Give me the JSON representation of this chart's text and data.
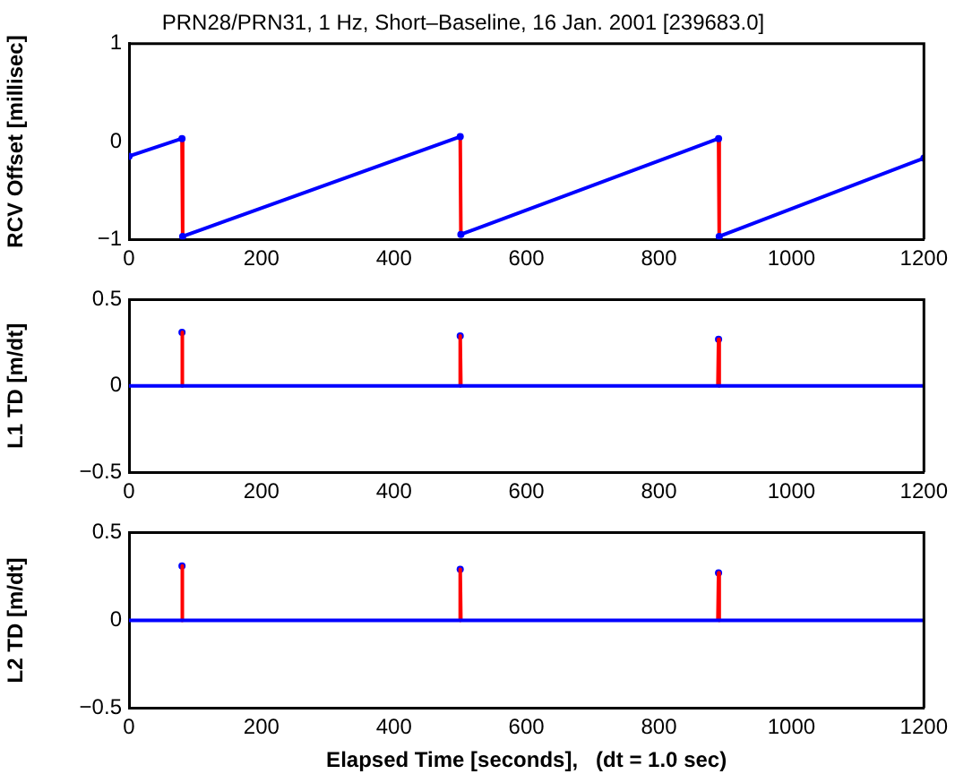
{
  "chart_data": [
    {
      "type": "line",
      "title": "PRN28/PRN31, 1 Hz, Short–Baseline, 16 Jan. 2001 [239683.0]",
      "ylabel": "RCV Offset [millisec]",
      "xlim": [
        0,
        1200
      ],
      "xticks": [
        0,
        200,
        400,
        600,
        800,
        1000,
        1200
      ],
      "ylim": [
        -1,
        1
      ],
      "yticks": [
        -1,
        0,
        1
      ],
      "legend": false,
      "line_style": "solid",
      "series": [
        {
          "color": "#0000ff",
          "marker": "circle",
          "x": [
            0,
            80,
            null,
            81,
            500,
            null,
            501,
            890,
            null,
            891,
            1200
          ],
          "values": [
            -0.15,
            0.03,
            null,
            -0.97,
            0.05,
            null,
            -0.95,
            0.03,
            null,
            -0.97,
            -0.17
          ]
        },
        {
          "color": "#ff0000",
          "marker": "none",
          "x": [
            80,
            81,
            null,
            500,
            501,
            null,
            890,
            891
          ],
          "values": [
            0.03,
            -0.97,
            null,
            0.05,
            -0.95,
            null,
            0.03,
            -0.97
          ]
        }
      ]
    },
    {
      "type": "line",
      "ylabel": "L1 TD [m/dt]",
      "xlim": [
        0,
        1200
      ],
      "xticks": [
        0,
        200,
        400,
        600,
        800,
        1000,
        1200
      ],
      "ylim": [
        -0.5,
        0.5
      ],
      "yticks": [
        -0.5,
        0,
        0.5
      ],
      "legend": false,
      "line_style": "solid",
      "series": [
        {
          "color": "#0000ff",
          "marker": "none",
          "x": [
            0,
            1200
          ],
          "values": [
            0,
            0
          ]
        },
        {
          "color": "#ff0000",
          "marker": "none",
          "x": [
            79,
            80,
            81,
            null,
            499,
            500,
            501,
            null,
            889,
            890,
            891
          ],
          "values": [
            0,
            0.31,
            0,
            null,
            0,
            0.29,
            0,
            null,
            0,
            0.27,
            0
          ]
        },
        {
          "type": "scatter",
          "color": "#0000ff",
          "marker": "circle",
          "x": [
            80,
            500,
            890
          ],
          "values": [
            0.31,
            0.29,
            0.27
          ]
        }
      ]
    },
    {
      "type": "line",
      "ylabel": "L2 TD [m/dt]",
      "xlabel": "Elapsed Time [seconds],   (dt = 1.0 sec)",
      "xlim": [
        0,
        1200
      ],
      "xticks": [
        0,
        200,
        400,
        600,
        800,
        1000,
        1200
      ],
      "ylim": [
        -0.5,
        0.5
      ],
      "yticks": [
        -0.5,
        0,
        0.5
      ],
      "legend": false,
      "line_style": "solid",
      "series": [
        {
          "color": "#0000ff",
          "marker": "none",
          "x": [
            0,
            1200
          ],
          "values": [
            0,
            0
          ]
        },
        {
          "color": "#ff0000",
          "marker": "none",
          "x": [
            79,
            80,
            81,
            null,
            499,
            500,
            501,
            null,
            889,
            890,
            891
          ],
          "values": [
            0,
            0.31,
            0,
            null,
            0,
            0.29,
            0,
            null,
            0,
            0.27,
            0
          ]
        },
        {
          "type": "scatter",
          "color": "#0000ff",
          "marker": "circle",
          "x": [
            80,
            500,
            890
          ],
          "values": [
            0.31,
            0.29,
            0.27
          ]
        }
      ]
    }
  ]
}
